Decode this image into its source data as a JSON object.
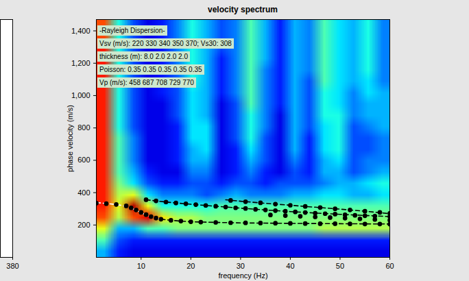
{
  "chart_data": [
    {
      "type": "heatmap",
      "title": "velocity spectrum",
      "x_label": "frequency (Hz)",
      "y_label": "phase velocity (m/s)",
      "xlim": [
        1,
        60
      ],
      "xticks": [
        10,
        20,
        30,
        40,
        50,
        60
      ],
      "ylim": [
        0,
        1470
      ],
      "yticks": [
        200,
        400,
        600,
        800,
        1000,
        1200,
        1400
      ],
      "grid": false,
      "annotations": [
        "-Rayleigh Dispersion-",
        "Vsv (m/s): 220 330 340 350 370; Vs30: 308",
        "thickness (m): 8.0 2.0 2.0 2.0",
        "Poisson: 0.35 0.35 0.35 0.35 0.35",
        "Vp (m/s): 458 687 708 729 770"
      ],
      "heatmap": {
        "zlim": [
          0,
          1
        ],
        "values": [
          [
            0.3,
            0.15,
            0.1,
            0.1,
            0.1,
            0.1,
            0.1,
            0.1,
            0.1,
            0.1,
            0.1,
            0.1,
            0.1,
            0.1,
            0.1,
            0.1,
            0.1,
            0.1,
            0.1,
            0.1
          ],
          [
            0.45,
            0.2,
            0.15,
            0.15,
            0.15,
            0.15,
            0.15,
            0.15,
            0.15,
            0.15,
            0.15,
            0.15,
            0.15,
            0.15,
            0.15,
            0.15,
            0.15,
            0.15,
            0.15,
            0.15
          ],
          [
            0.6,
            0.3,
            0.3,
            0.45,
            0.45,
            0.5,
            0.5,
            0.5,
            0.5,
            0.5,
            0.5,
            0.5,
            0.5,
            0.5,
            0.5,
            0.55,
            0.55,
            0.55,
            0.55,
            0.55
          ],
          [
            0.8,
            0.55,
            0.8,
            0.9,
            0.65,
            0.55,
            0.55,
            0.5,
            0.5,
            0.5,
            0.5,
            0.5,
            0.5,
            0.5,
            0.5,
            0.5,
            0.5,
            0.5,
            0.5,
            0.5
          ],
          [
            0.85,
            0.6,
            0.95,
            0.6,
            0.4,
            0.4,
            0.4,
            0.4,
            0.45,
            0.45,
            0.45,
            0.45,
            0.45,
            0.45,
            0.45,
            0.45,
            0.45,
            0.45,
            0.45,
            0.45
          ],
          [
            0.85,
            0.55,
            0.6,
            0.35,
            0.25,
            0.25,
            0.25,
            0.2,
            0.25,
            0.3,
            0.25,
            0.25,
            0.25,
            0.3,
            0.3,
            0.35,
            0.35,
            0.3,
            0.3,
            0.35
          ],
          [
            0.85,
            0.5,
            0.35,
            0.2,
            0.15,
            0.15,
            0.2,
            0.2,
            0.15,
            0.2,
            0.2,
            0.15,
            0.2,
            0.2,
            0.2,
            0.25,
            0.3,
            0.3,
            0.35,
            0.4
          ],
          [
            0.85,
            0.45,
            0.3,
            0.15,
            0.1,
            0.1,
            0.25,
            0.25,
            0.1,
            0.15,
            0.25,
            0.15,
            0.1,
            0.2,
            0.15,
            0.3,
            0.3,
            0.2,
            0.25,
            0.3
          ],
          [
            0.85,
            0.45,
            0.25,
            0.1,
            0.1,
            0.15,
            0.3,
            0.3,
            0.1,
            0.15,
            0.3,
            0.2,
            0.1,
            0.25,
            0.15,
            0.3,
            0.35,
            0.2,
            0.25,
            0.25
          ],
          [
            0.85,
            0.45,
            0.25,
            0.1,
            0.1,
            0.15,
            0.3,
            0.35,
            0.1,
            0.15,
            0.35,
            0.2,
            0.1,
            0.3,
            0.15,
            0.35,
            0.4,
            0.2,
            0.2,
            0.25
          ],
          [
            0.85,
            0.45,
            0.25,
            0.1,
            0.1,
            0.15,
            0.35,
            0.35,
            0.1,
            0.2,
            0.4,
            0.2,
            0.1,
            0.3,
            0.15,
            0.35,
            0.4,
            0.2,
            0.2,
            0.25
          ],
          [
            0.85,
            0.4,
            0.2,
            0.1,
            0.1,
            0.15,
            0.35,
            0.35,
            0.1,
            0.2,
            0.4,
            0.25,
            0.1,
            0.3,
            0.2,
            0.35,
            0.4,
            0.2,
            0.25,
            0.3
          ],
          [
            0.85,
            0.4,
            0.2,
            0.1,
            0.1,
            0.2,
            0.35,
            0.3,
            0.1,
            0.2,
            0.4,
            0.25,
            0.1,
            0.3,
            0.2,
            0.4,
            0.4,
            0.25,
            0.3,
            0.3
          ],
          [
            0.85,
            0.4,
            0.2,
            0.1,
            0.1,
            0.2,
            0.35,
            0.3,
            0.1,
            0.2,
            0.45,
            0.25,
            0.15,
            0.3,
            0.2,
            0.4,
            0.35,
            0.25,
            0.3,
            0.3
          ],
          [
            0.85,
            0.4,
            0.2,
            0.1,
            0.15,
            0.2,
            0.35,
            0.3,
            0.15,
            0.25,
            0.45,
            0.25,
            0.15,
            0.3,
            0.2,
            0.4,
            0.35,
            0.25,
            0.35,
            0.3
          ],
          [
            0.85,
            0.4,
            0.2,
            0.1,
            0.15,
            0.2,
            0.4,
            0.3,
            0.15,
            0.25,
            0.45,
            0.25,
            0.15,
            0.3,
            0.2,
            0.45,
            0.35,
            0.3,
            0.35,
            0.25
          ],
          [
            0.85,
            0.4,
            0.2,
            0.1,
            0.15,
            0.25,
            0.4,
            0.3,
            0.15,
            0.25,
            0.45,
            0.25,
            0.15,
            0.3,
            0.25,
            0.45,
            0.35,
            0.3,
            0.4,
            0.25
          ],
          [
            0.85,
            0.4,
            0.2,
            0.1,
            0.15,
            0.25,
            0.4,
            0.3,
            0.15,
            0.25,
            0.45,
            0.3,
            0.15,
            0.3,
            0.25,
            0.45,
            0.35,
            0.3,
            0.4,
            0.25
          ],
          [
            0.85,
            0.4,
            0.2,
            0.1,
            0.15,
            0.25,
            0.4,
            0.3,
            0.2,
            0.25,
            0.45,
            0.3,
            0.15,
            0.3,
            0.25,
            0.45,
            0.35,
            0.3,
            0.4,
            0.25
          ],
          [
            0.8,
            0.4,
            0.2,
            0.1,
            0.15,
            0.25,
            0.4,
            0.3,
            0.2,
            0.25,
            0.45,
            0.3,
            0.15,
            0.3,
            0.25,
            0.45,
            0.35,
            0.3,
            0.4,
            0.25
          ],
          [
            0.8,
            0.4,
            0.2,
            0.1,
            0.15,
            0.25,
            0.4,
            0.3,
            0.2,
            0.25,
            0.45,
            0.3,
            0.15,
            0.3,
            0.25,
            0.45,
            0.35,
            0.3,
            0.4,
            0.25
          ]
        ]
      },
      "series": [
        {
          "type": "line",
          "color": "white",
          "line_style": "dashed",
          "x": [
            1,
            2,
            4,
            6,
            8,
            9,
            10,
            11,
            12,
            13,
            14
          ],
          "values": [
            338,
            336,
            330,
            322,
            305,
            292,
            276,
            262,
            250,
            242,
            236
          ]
        },
        {
          "type": "line",
          "color": "black",
          "line_style": "dashed",
          "x": [
            14,
            16,
            18,
            20,
            25,
            30,
            40,
            50,
            60
          ],
          "values": [
            236,
            229,
            224,
            220,
            216,
            213,
            210,
            208,
            206
          ]
        },
        {
          "type": "line",
          "color": "black",
          "line_style": "dashed",
          "x": [
            11,
            15,
            20,
            25,
            30,
            35,
            40,
            45,
            50,
            55,
            60
          ],
          "values": [
            356,
            342,
            328,
            316,
            304,
            293,
            283,
            274,
            266,
            259,
            252
          ]
        },
        {
          "type": "line",
          "color": "black",
          "line_style": "dashed",
          "x": [
            27,
            30,
            35,
            40,
            45,
            50,
            55,
            60
          ],
          "values": [
            356,
            347,
            334,
            322,
            310,
            298,
            285,
            270
          ]
        },
        {
          "type": "scatter",
          "color": "black",
          "marker": "o",
          "x": [
            1,
            3,
            5,
            7,
            8,
            9,
            10,
            11,
            12,
            13,
            14,
            16,
            18,
            20,
            22,
            25,
            28,
            31,
            34,
            37,
            40,
            43,
            46,
            49,
            52,
            55,
            58,
            60
          ],
          "values": [
            335,
            332,
            327,
            318,
            306,
            293,
            278,
            264,
            252,
            243,
            236,
            229,
            224,
            220,
            218,
            216,
            214,
            213,
            212,
            211,
            210,
            209,
            208,
            208,
            207,
            206,
            206,
            205
          ]
        },
        {
          "type": "scatter",
          "color": "black",
          "marker": "o",
          "x": [
            11,
            13,
            15,
            17,
            19,
            21,
            23,
            25,
            27,
            29,
            31,
            33,
            35,
            37,
            39,
            41,
            43,
            45,
            47,
            49,
            51,
            53,
            55,
            57,
            60
          ],
          "values": [
            356,
            349,
            342,
            336,
            331,
            326,
            321,
            316,
            311,
            306,
            302,
            297,
            293,
            289,
            285,
            281,
            277,
            273,
            270,
            267,
            263,
            260,
            257,
            255,
            252
          ]
        },
        {
          "type": "scatter",
          "color": "black",
          "marker": "o",
          "x": [
            28,
            31,
            34,
            37,
            40,
            43,
            46,
            49,
            52,
            55,
            58,
            60
          ],
          "values": [
            352,
            344,
            337,
            329,
            322,
            315,
            308,
            300,
            293,
            285,
            278,
            272
          ]
        },
        {
          "type": "scatter",
          "color": "black",
          "marker": "o",
          "x": [
            36,
            39,
            42,
            45,
            48,
            51,
            54,
            57,
            60
          ],
          "values": [
            262,
            258,
            254,
            250,
            246,
            242,
            238,
            234,
            230
          ]
        }
      ]
    },
    {
      "type": "line",
      "xlim": [
        370,
        380
      ],
      "xticks": [
        380
      ],
      "tick_labels": "x",
      "series": []
    }
  ]
}
